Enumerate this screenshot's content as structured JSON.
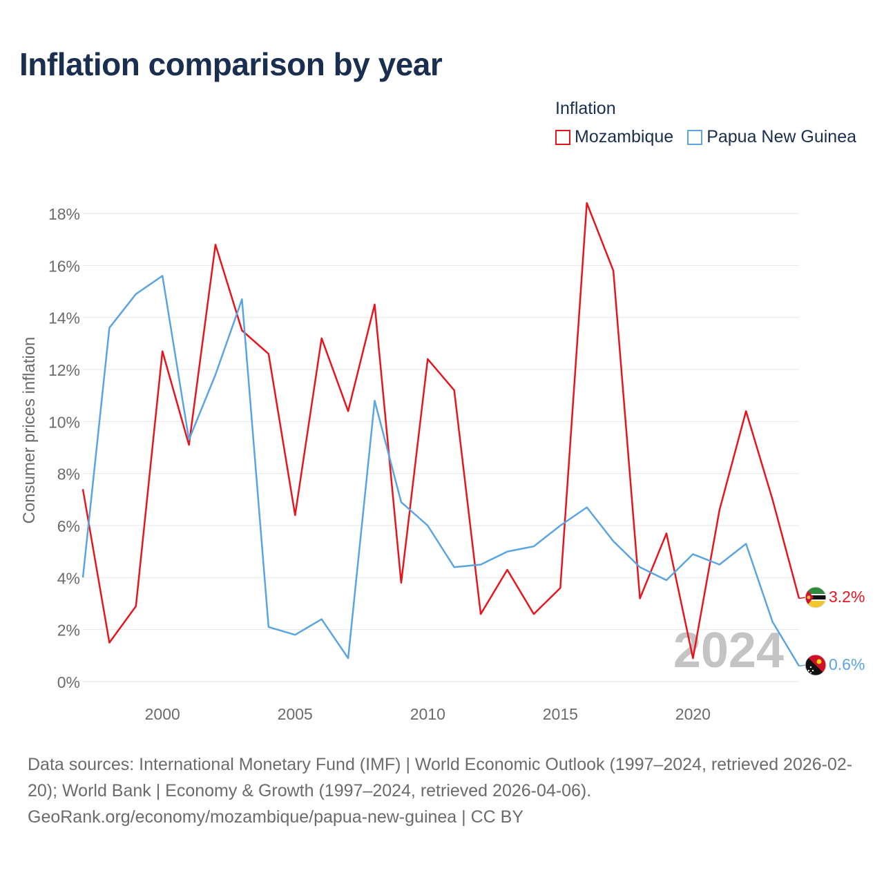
{
  "title": "Inflation comparison by year",
  "legend": {
    "title": "Inflation",
    "items": [
      {
        "label": "Mozambique",
        "color": "#e8141c"
      },
      {
        "label": "Papua New Guinea",
        "color": "#5aa4e2"
      }
    ]
  },
  "year_watermark": "2024",
  "footer": {
    "sources": "Data sources: International Monetary Fund (IMF) | World Economic Outlook (1997–2024, retrieved 2026-02-20); World Bank | Economy & Growth (1997–2024, retrieved 2026-04-06).",
    "attribution": "GeoRank.org/economy/mozambique/papua-new-guinea | CC BY"
  },
  "chart_data": {
    "type": "line",
    "title": "Inflation comparison by year",
    "xlabel": "",
    "ylabel": "Consumer prices inflation",
    "xlim": [
      1997,
      2024
    ],
    "ylim": [
      0,
      18
    ],
    "y_ticks": [
      0,
      2,
      4,
      6,
      8,
      10,
      12,
      14,
      16,
      18
    ],
    "y_tick_labels": [
      "0%",
      "2%",
      "4%",
      "6%",
      "8%",
      "10%",
      "12%",
      "14%",
      "16%",
      "18%"
    ],
    "x_ticks": [
      2000,
      2005,
      2010,
      2015,
      2020
    ],
    "x_tick_labels": [
      "2000",
      "2005",
      "2010",
      "2015",
      "2020"
    ],
    "grid": true,
    "legend_position": "top-right",
    "x": [
      1997,
      1998,
      1999,
      2000,
      2001,
      2002,
      2003,
      2004,
      2005,
      2006,
      2007,
      2008,
      2009,
      2010,
      2011,
      2012,
      2013,
      2014,
      2015,
      2016,
      2017,
      2018,
      2019,
      2020,
      2021,
      2022,
      2023,
      2024
    ],
    "series": [
      {
        "name": "Mozambique",
        "color": "#e8141c",
        "end_label": "3.2%",
        "values": [
          7.4,
          1.5,
          2.9,
          12.7,
          9.1,
          16.8,
          13.5,
          12.6,
          6.4,
          13.2,
          10.4,
          14.5,
          3.8,
          12.4,
          11.2,
          2.6,
          4.3,
          2.6,
          3.6,
          18.4,
          15.8,
          3.2,
          5.7,
          0.9,
          6.6,
          10.4,
          7.0,
          3.2
        ]
      },
      {
        "name": "Papua New Guinea",
        "color": "#5aa4e2",
        "end_label": "0.6%",
        "values": [
          4.0,
          13.6,
          14.9,
          15.6,
          9.3,
          11.8,
          14.7,
          2.1,
          1.8,
          2.4,
          0.9,
          10.8,
          6.9,
          6.0,
          4.4,
          4.5,
          5.0,
          5.2,
          6.0,
          6.7,
          5.4,
          4.4,
          3.9,
          4.9,
          4.5,
          5.3,
          2.3,
          0.6
        ]
      }
    ]
  }
}
